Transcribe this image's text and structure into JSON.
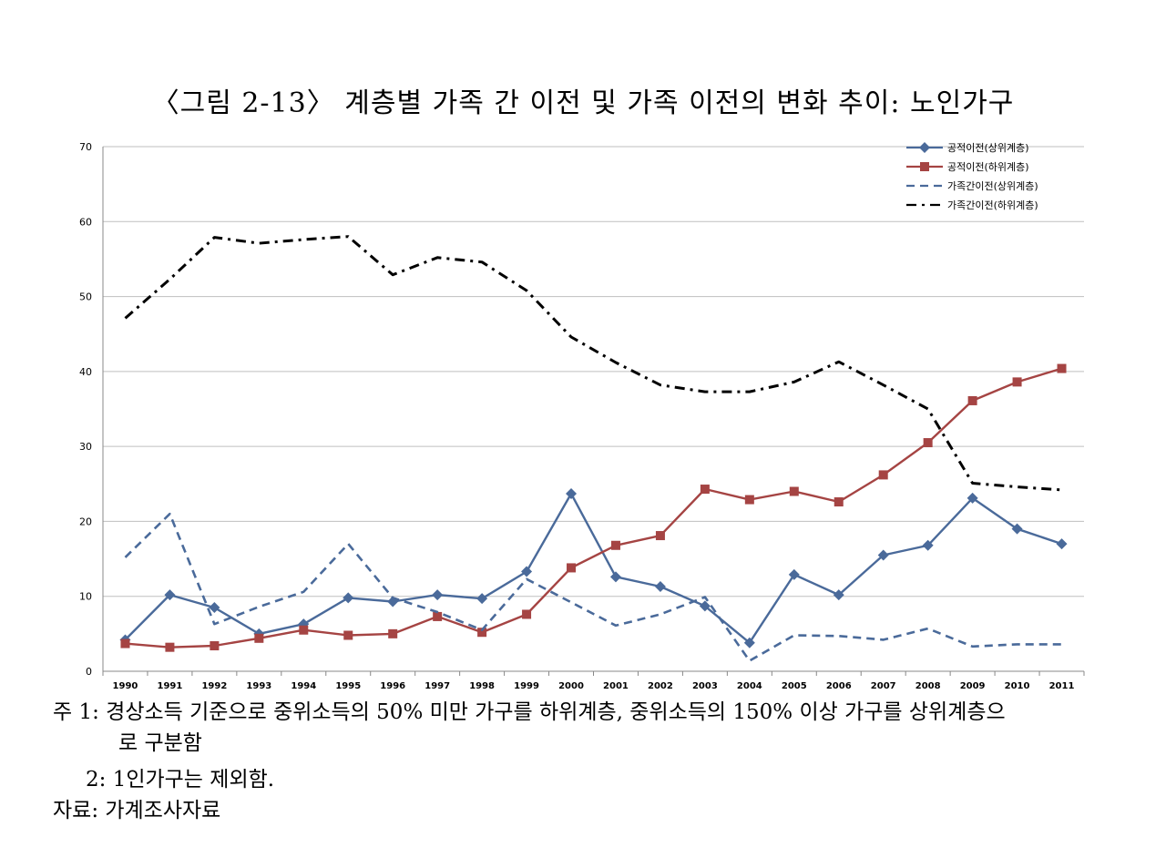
{
  "title": "〈그림 2-13〉 계층별 가족 간 이전 및 가족 이전의 변화 추이: 노인가구",
  "chart_data": {
    "type": "line",
    "x": [
      "1990",
      "1991",
      "1992",
      "1993",
      "1994",
      "1995",
      "1996",
      "1997",
      "1998",
      "1999",
      "2000",
      "2001",
      "2002",
      "2003",
      "2004",
      "2005",
      "2006",
      "2007",
      "2008",
      "2009",
      "2010",
      "2011"
    ],
    "ylim": [
      0,
      70
    ],
    "yticks": [
      0,
      10,
      20,
      30,
      40,
      50,
      60,
      70
    ],
    "grid": true,
    "legend_position": "top-right",
    "series": [
      {
        "name": "공적이전(상위계층)",
        "color": "#4a6a9a",
        "style": "solid-diamond",
        "values": [
          4.2,
          10.2,
          8.5,
          5.0,
          6.3,
          9.8,
          9.3,
          10.2,
          9.7,
          13.3,
          23.7,
          12.6,
          11.3,
          8.7,
          3.8,
          12.9,
          10.2,
          15.5,
          16.8,
          23.1,
          19.0,
          17.0
        ]
      },
      {
        "name": "공적이전(하위계층)",
        "color": "#a54443",
        "style": "solid-square",
        "values": [
          3.7,
          3.2,
          3.4,
          4.4,
          5.5,
          4.8,
          5.0,
          7.3,
          5.2,
          7.6,
          13.8,
          16.8,
          18.1,
          24.3,
          22.9,
          24.0,
          22.6,
          26.2,
          30.5,
          36.1,
          38.6,
          40.4
        ]
      },
      {
        "name": "가족간이전(상위계층)",
        "color": "#4a6a9a",
        "style": "dash",
        "values": [
          15.2,
          21.0,
          6.3,
          8.6,
          10.6,
          17.0,
          9.8,
          7.9,
          5.5,
          12.3,
          9.2,
          6.1,
          7.6,
          9.9,
          1.4,
          4.8,
          4.7,
          4.2,
          5.7,
          3.3,
          3.6,
          3.6
        ]
      },
      {
        "name": "가족간이전(하위계층)",
        "color": "#000000",
        "style": "dashdot",
        "values": [
          47.1,
          52.3,
          57.9,
          57.1,
          57.6,
          58.0,
          52.9,
          55.2,
          54.6,
          50.8,
          44.6,
          41.2,
          38.2,
          37.3,
          37.3,
          38.6,
          41.3,
          38.2,
          35.0,
          25.1,
          24.6,
          24.2
        ]
      }
    ]
  },
  "notes": {
    "line1": "주 1:  경상소득 기준으로 중위소득의 50% 미만 가구를 하위계층, 중위소득의 150% 이상 가구를 상위계층으",
    "line2": "로 구분함",
    "line3": "2:  1인가구는 제외함.",
    "line4": "자료:  가계조사자료"
  }
}
